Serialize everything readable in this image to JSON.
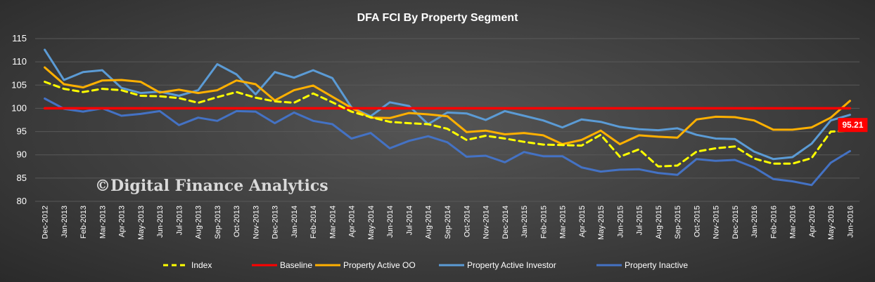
{
  "watermark": "©Digital Finance Analytics",
  "colors": {
    "index": "#ffff00",
    "baseline": "#ff0000",
    "active_oo": "#ffb000",
    "active_investor": "#5b9bd5",
    "inactive": "#4472c4",
    "callout_bg": "#ff0000",
    "gridline": "#595959"
  },
  "chart_data": {
    "type": "line",
    "title": "DFA  FCI By Property  Segment",
    "xlabel": "",
    "ylabel": "",
    "ylim": [
      80,
      115
    ],
    "yticks": [
      80,
      85,
      90,
      95,
      100,
      105,
      110,
      115
    ],
    "grid": true,
    "legend_position": "bottom",
    "categories": [
      "Dec-2012",
      "Jan-2013",
      "Feb-2013",
      "Mar-2013",
      "Apr-2013",
      "May-2013",
      "Jun-2013",
      "Jul-2013",
      "Aug-2013",
      "Sep-2013",
      "Oct-2013",
      "Nov-2013",
      "Dec-2013",
      "Jan-2014",
      "Feb-2014",
      "Mar-2014",
      "Apr-2014",
      "May-2014",
      "Jun-2014",
      "Jul-2014",
      "Aug-2014",
      "Sep-2014",
      "Oct-2014",
      "Nov-2014",
      "Dec-2014",
      "Jan-2015",
      "Feb-2015",
      "Mar-2015",
      "Apr-2015",
      "May-2015",
      "Jun-2015",
      "Jul-2015",
      "Aug-2015",
      "Sep-2015",
      "Oct-2015",
      "Nov-2015",
      "Dec-2015",
      "Jan-2016",
      "Feb-2016",
      "Mar-2016",
      "Apr-2016",
      "May-2016",
      "Jun-2016"
    ],
    "series": [
      {
        "name": "Index",
        "style": "dashed",
        "color_key": "index",
        "values": [
          105.7,
          104.2,
          103.5,
          104.2,
          103.9,
          102.7,
          102.6,
          102.2,
          101.2,
          102.4,
          103.5,
          102.3,
          101.5,
          101.2,
          103.2,
          101.3,
          99.3,
          98.1,
          97.1,
          96.8,
          96.6,
          95.6,
          93.2,
          94.1,
          93.5,
          92.8,
          92.2,
          92.1,
          92.0,
          94.3,
          89.6,
          91.2,
          87.5,
          87.7,
          90.7,
          91.4,
          91.8,
          89.2,
          88.1,
          88.1,
          89.3,
          95.0,
          95.21
        ]
      },
      {
        "name": "Baseline",
        "style": "solid",
        "color_key": "baseline",
        "values": [
          100,
          100,
          100,
          100,
          100,
          100,
          100,
          100,
          100,
          100,
          100,
          100,
          100,
          100,
          100,
          100,
          100,
          100,
          100,
          100,
          100,
          100,
          100,
          100,
          100,
          100,
          100,
          100,
          100,
          100,
          100,
          100,
          100,
          100,
          100,
          100,
          100,
          100,
          100,
          100,
          100,
          100,
          100
        ]
      },
      {
        "name": "Property Active OO",
        "style": "solid",
        "color_key": "active_oo",
        "values": [
          108.8,
          105.2,
          104.5,
          106.0,
          106.1,
          105.7,
          103.4,
          104.0,
          103.3,
          103.9,
          106.0,
          105.2,
          101.7,
          103.9,
          104.9,
          102.5,
          100.1,
          98.0,
          97.9,
          99.0,
          98.7,
          98.3,
          94.9,
          95.2,
          94.4,
          94.7,
          94.2,
          92.3,
          93.2,
          95.2,
          92.3,
          94.2,
          93.9,
          93.7,
          97.6,
          98.2,
          98.1,
          97.4,
          95.4,
          95.4,
          95.9,
          98.0,
          101.6
        ]
      },
      {
        "name": "Property Active Investor",
        "style": "solid",
        "color_key": "active_investor",
        "values": [
          112.6,
          106.1,
          107.8,
          108.2,
          104.4,
          103.3,
          103.6,
          102.7,
          103.9,
          109.5,
          107.3,
          103.0,
          107.8,
          106.6,
          108.2,
          106.5,
          100.2,
          98.3,
          101.3,
          100.5,
          96.6,
          99.1,
          98.9,
          97.5,
          99.4,
          98.4,
          97.4,
          95.9,
          97.6,
          97.1,
          96.0,
          95.5,
          95.3,
          95.7,
          94.3,
          93.5,
          93.4,
          90.7,
          89.1,
          89.5,
          92.4,
          97.4,
          98.6
        ]
      },
      {
        "name": "Property Inactive",
        "style": "solid",
        "color_key": "inactive",
        "values": [
          102.1,
          99.9,
          99.3,
          100.0,
          98.4,
          98.8,
          99.4,
          96.4,
          98.0,
          97.3,
          99.4,
          99.3,
          96.8,
          99.1,
          97.3,
          96.6,
          93.5,
          94.7,
          91.4,
          93.0,
          94.0,
          92.7,
          89.6,
          89.8,
          88.4,
          90.6,
          89.7,
          89.7,
          87.3,
          86.4,
          86.8,
          86.9,
          86.1,
          85.7,
          89.1,
          88.7,
          88.9,
          87.3,
          84.8,
          84.3,
          83.5,
          88.3,
          90.8
        ]
      }
    ],
    "annotations": [
      {
        "series": "Index",
        "category": "Jun-2016",
        "text": "95.21"
      }
    ]
  }
}
